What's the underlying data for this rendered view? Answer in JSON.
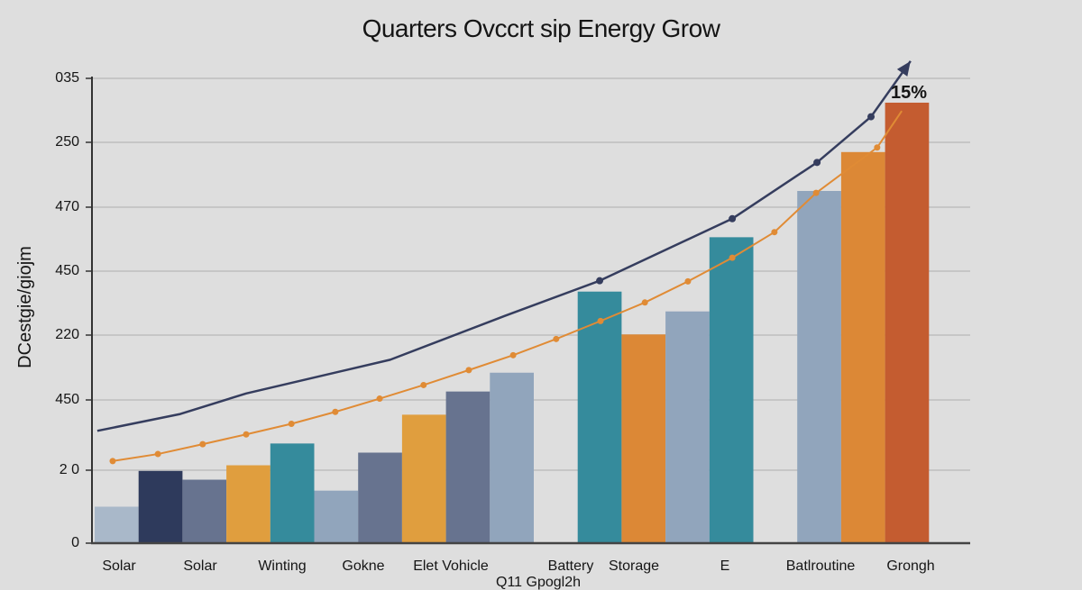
{
  "chart_data": {
    "type": "bar",
    "title": "Quarters Ovccrt sip Energy Grow",
    "ylabel": "DCestgie/giojm",
    "subtitle": "Q11 Gpogl2h",
    "y_tick_labels": [
      "0",
      "2 0",
      "450",
      "220",
      "450",
      "470",
      "250",
      "035"
    ],
    "ylim": [
      0,
      7
    ],
    "grid": true,
    "x_tick_labels": [
      "Solar",
      "Solar",
      "Winting",
      "Gokne",
      "Elet Vohicle",
      "Battery",
      "Storage",
      "E",
      "Batlroutine",
      "Grongh"
    ],
    "bars": [
      {
        "slot": 0,
        "value": 0.5,
        "color": "#a9b8c9"
      },
      {
        "slot": 1,
        "value": 0.99,
        "color": "#2e3a5c"
      },
      {
        "slot": 2,
        "value": 0.87,
        "color": "#67738f"
      },
      {
        "slot": 3,
        "value": 1.07,
        "color": "#e09e3e"
      },
      {
        "slot": 4,
        "value": 1.38,
        "color": "#358b9c"
      },
      {
        "slot": 5,
        "value": 0.72,
        "color": "#91a5bc"
      },
      {
        "slot": 6,
        "value": 1.25,
        "color": "#67738f"
      },
      {
        "slot": 7,
        "value": 1.79,
        "color": "#e09e3e"
      },
      {
        "slot": 8,
        "value": 2.13,
        "color": "#67738f"
      },
      {
        "slot": 9,
        "value": 2.42,
        "color": "#91a5bc"
      },
      {
        "slot": 11,
        "value": 3.68,
        "color": "#358b9c"
      },
      {
        "slot": 12,
        "value": 3.01,
        "color": "#dc8836"
      },
      {
        "slot": 13,
        "value": 3.37,
        "color": "#91a5bc"
      },
      {
        "slot": 14,
        "value": 4.53,
        "color": "#358b9c"
      },
      {
        "slot": 16,
        "value": 5.25,
        "color": "#91a5bc"
      },
      {
        "slot": 17,
        "value": 5.85,
        "color": "#dc8836"
      },
      {
        "slot": 18,
        "value": 6.62,
        "color": "#c45c30"
      }
    ],
    "series": [
      {
        "type": "line",
        "color": "#e08b35",
        "points": [
          [
            0.41,
            1.13
          ],
          [
            1.44,
            1.23
          ],
          [
            2.46,
            1.37
          ],
          [
            3.45,
            1.51
          ],
          [
            4.48,
            1.66
          ],
          [
            5.48,
            1.83
          ],
          [
            6.49,
            2.02
          ],
          [
            7.49,
            2.23
          ],
          [
            8.52,
            2.46
          ],
          [
            9.53,
            2.69
          ],
          [
            10.51,
            2.94
          ],
          [
            11.52,
            3.22
          ],
          [
            12.53,
            3.51
          ],
          [
            13.51,
            3.84
          ],
          [
            14.52,
            4.21
          ],
          [
            15.48,
            4.61
          ],
          [
            16.43,
            5.22
          ],
          [
            17.82,
            5.92
          ],
          [
            18.38,
            6.49
          ]
        ]
      },
      {
        "type": "line",
        "color": "#353d5e",
        "arrow": true,
        "points": [
          [
            0.06,
            1.56
          ],
          [
            1.95,
            1.8
          ],
          [
            3.45,
            2.1
          ],
          [
            6.73,
            2.62
          ],
          [
            9.34,
            3.3
          ],
          [
            11.5,
            3.85
          ],
          [
            14.52,
            4.82
          ],
          [
            16.45,
            5.69
          ],
          [
            17.68,
            6.4
          ],
          [
            18.58,
            7.27
          ]
        ],
        "marked_points": [
          5,
          6,
          7,
          8
        ]
      }
    ],
    "annotation": "15%"
  }
}
